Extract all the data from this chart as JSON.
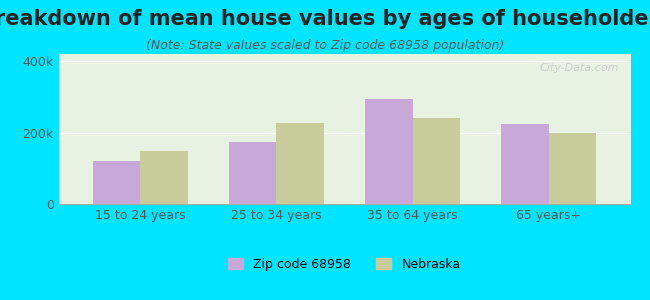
{
  "title": "Breakdown of mean house values by ages of householders",
  "subtitle": "(Note: State values scaled to Zip code 68958 population)",
  "categories": [
    "15 to 24 years",
    "25 to 34 years",
    "35 to 64 years",
    "65 years+"
  ],
  "zip_values": [
    120000,
    175000,
    295000,
    225000
  ],
  "state_values": [
    148000,
    228000,
    242000,
    200000
  ],
  "zip_color": "#c8a8d8",
  "state_color": "#c8cc9a",
  "background_color": "#00e5ff",
  "ylabel_ticks": [
    0,
    200000,
    400000
  ],
  "ylabel_labels": [
    "0",
    "200k",
    "400k"
  ],
  "ylim": [
    0,
    420000
  ],
  "bar_width": 0.35,
  "legend_zip": "Zip code 68958",
  "legend_state": "Nebraska",
  "title_fontsize": 15,
  "subtitle_fontsize": 9,
  "tick_fontsize": 9,
  "legend_fontsize": 9
}
